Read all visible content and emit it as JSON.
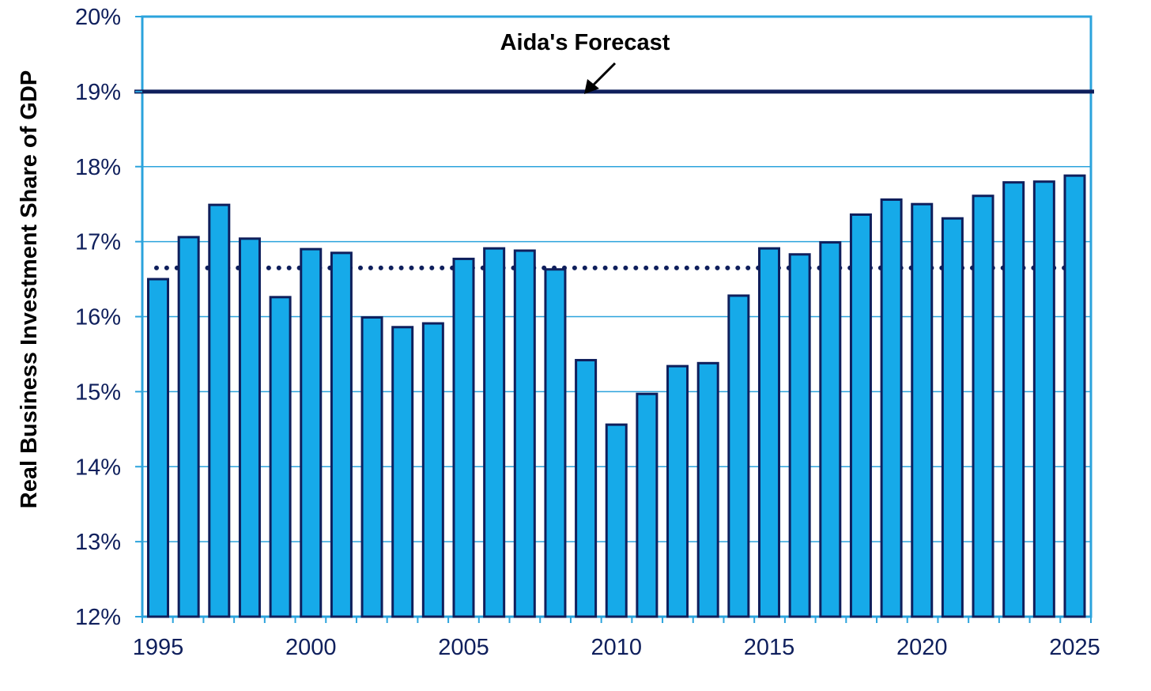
{
  "chart_data": {
    "type": "bar",
    "title": "",
    "xlabel": "",
    "ylabel": "Real Business Investment Share of GDP",
    "ylim": [
      12,
      20
    ],
    "y_tick_labels": [
      "12%",
      "13%",
      "14%",
      "15%",
      "16%",
      "17%",
      "18%",
      "19%",
      "20%"
    ],
    "x_tick_labels": [
      "1995",
      "2000",
      "2005",
      "2010",
      "2015",
      "2020",
      "2025"
    ],
    "grid": true,
    "legend": "none",
    "categories": [
      1995,
      1996,
      1997,
      1998,
      1999,
      2000,
      2001,
      2002,
      2003,
      2004,
      2005,
      2006,
      2007,
      2008,
      2009,
      2010,
      2011,
      2012,
      2013,
      2014,
      2015,
      2016,
      2017,
      2018,
      2019,
      2020,
      2021,
      2022,
      2023,
      2024,
      2025
    ],
    "values": [
      16.5,
      17.06,
      17.49,
      17.04,
      16.26,
      16.9,
      16.85,
      15.99,
      15.86,
      15.91,
      16.77,
      16.91,
      16.88,
      16.63,
      15.42,
      14.56,
      14.97,
      15.34,
      15.38,
      16.28,
      16.91,
      16.83,
      16.99,
      17.36,
      17.56,
      17.5,
      17.31,
      17.61,
      17.79,
      17.8,
      17.88
    ],
    "average_line": {
      "value": 16.65,
      "style": "dotted"
    },
    "reference_line": {
      "value": 19,
      "label": "Aida's Forecast"
    },
    "colors": {
      "bar_fill": "#16aae9",
      "bar_stroke": "#0f1f5c",
      "gridline": "#2ba3dc",
      "frame": "#2ba3dc",
      "reference_line": "#0f1f5c",
      "average_line": "#0f1f5c",
      "tick_text": "#0f1f5c",
      "axis_title": "#000000"
    }
  }
}
